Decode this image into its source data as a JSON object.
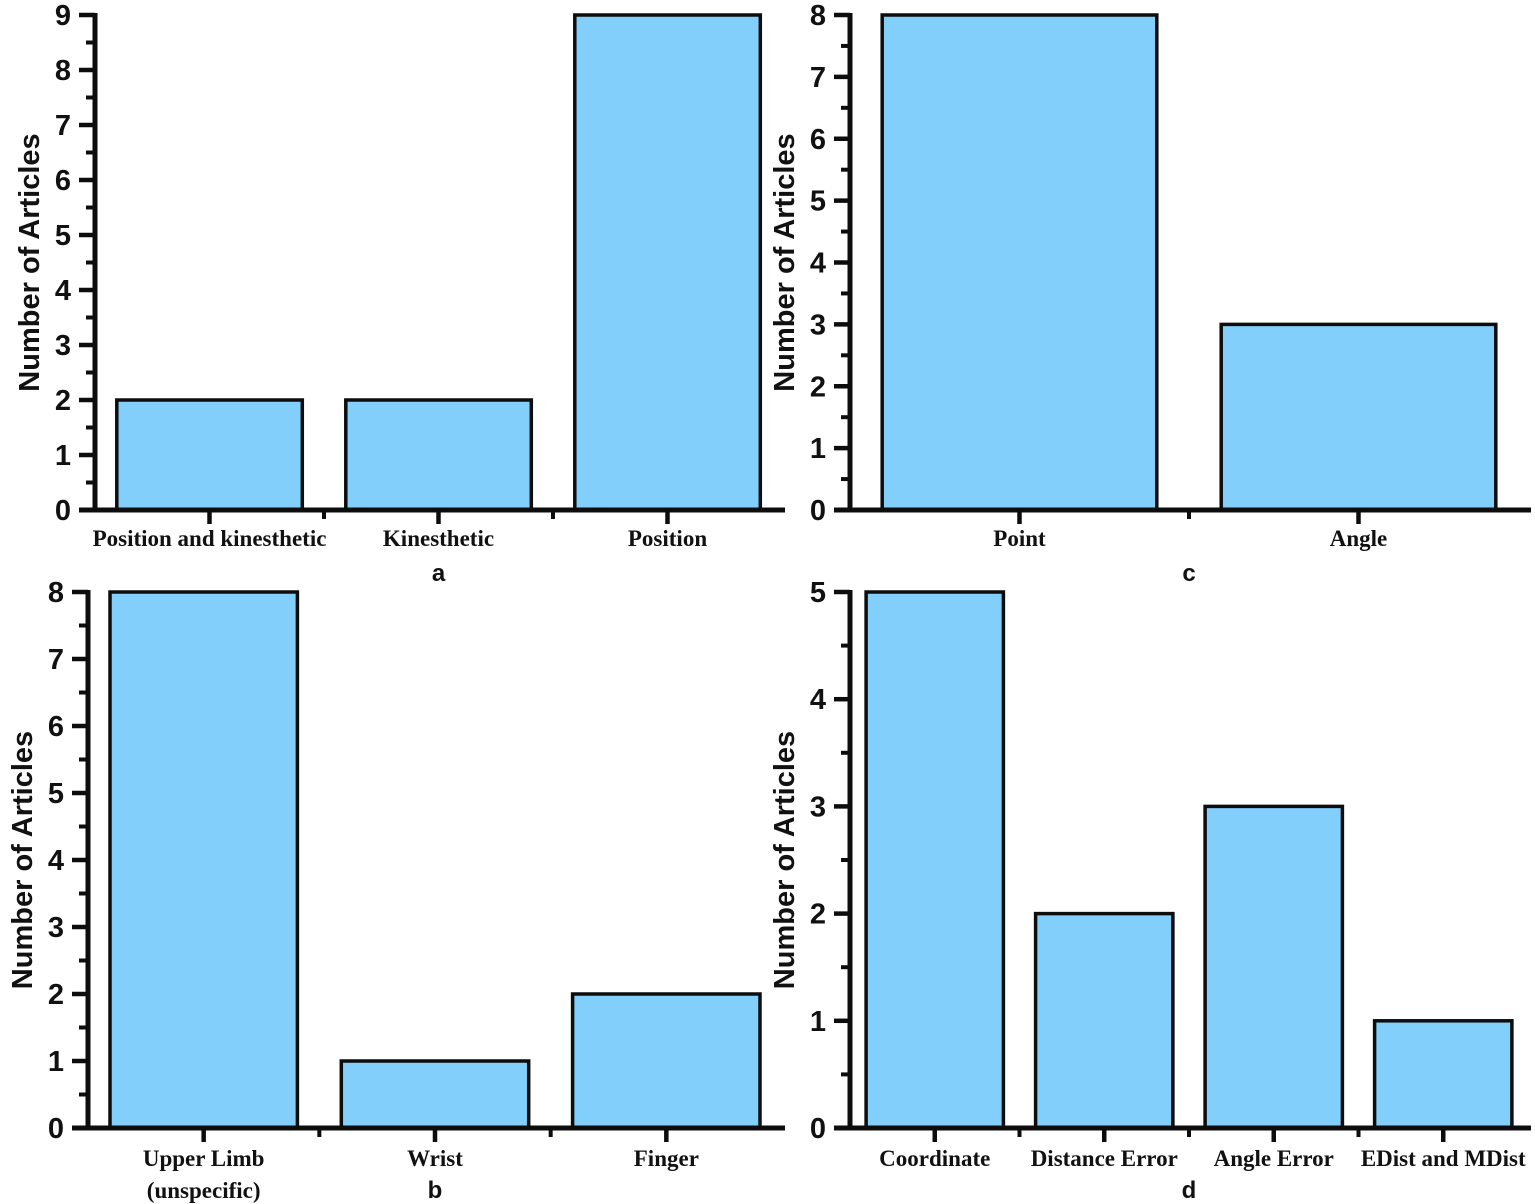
{
  "figure": {
    "background": "#ffffff",
    "bar_fill": "#82CFFB",
    "bar_stroke": "#0d0d0d",
    "axis_color": "#0d0d0d",
    "text_color": "#111111"
  },
  "chart_data": [
    {
      "type": "bar",
      "panel_label": "a",
      "position": "top-left",
      "ylabel": "Number of Articles",
      "categories": [
        "Position and kinesthetic",
        "Kinesthetic",
        "Position"
      ],
      "values": [
        2,
        2,
        9
      ],
      "ylim": [
        0,
        9
      ],
      "yticks": [
        0,
        1,
        2,
        3,
        4,
        5,
        6,
        7,
        8,
        9
      ],
      "yminor_step": 0.5,
      "grid": false,
      "legend": "none"
    },
    {
      "type": "bar",
      "panel_label": "c",
      "position": "top-right",
      "ylabel": "Number of Articles",
      "categories": [
        "Point",
        "Angle"
      ],
      "values": [
        8,
        3
      ],
      "ylim": [
        0,
        8
      ],
      "yticks": [
        0,
        1,
        2,
        3,
        4,
        5,
        6,
        7,
        8
      ],
      "yminor_step": 0.5,
      "grid": false,
      "legend": "none"
    },
    {
      "type": "bar",
      "panel_label": "b",
      "position": "bottom-left",
      "ylabel": "Number of Articles",
      "categories": [
        "Upper Limb\n(unspecific)",
        "Wrist",
        "Finger"
      ],
      "values": [
        8,
        1,
        2
      ],
      "ylim": [
        0,
        8
      ],
      "yticks": [
        0,
        1,
        2,
        3,
        4,
        5,
        6,
        7,
        8
      ],
      "yminor_step": 0.5,
      "grid": false,
      "legend": "none"
    },
    {
      "type": "bar",
      "panel_label": "d",
      "position": "bottom-right",
      "ylabel": "Number of Articles",
      "categories": [
        "Coordinate",
        "Distance Error",
        "Angle Error",
        "EDist and MDist"
      ],
      "values": [
        5,
        2,
        3,
        1
      ],
      "ylim": [
        0,
        5
      ],
      "yticks": [
        0,
        1,
        2,
        3,
        4,
        5
      ],
      "yminor_step": 0.5,
      "grid": false,
      "legend": "none"
    }
  ]
}
